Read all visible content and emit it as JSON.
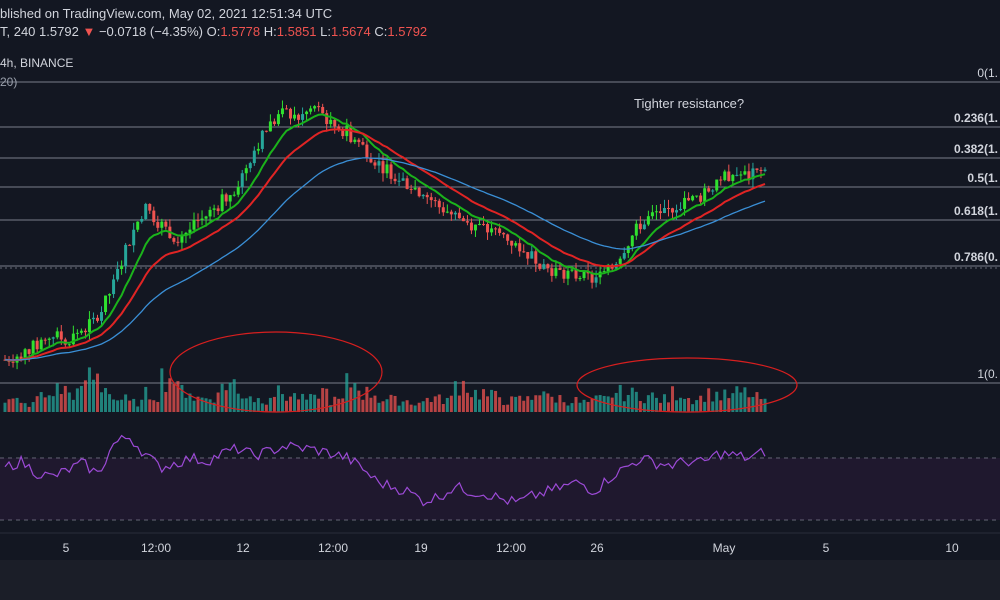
{
  "header": {
    "published": "blished on TradingView.com, May 02, 2021 12:51:34 UTC",
    "symbol_interval": "T, 240",
    "last_price": "1.5792",
    "change_arrow": "▼",
    "change": "−0.0718 (−4.35%)",
    "o_label": "O:",
    "o_value": "1.5778",
    "h_label": "H:",
    "h_value": "1.5851",
    "l_label": "L:",
    "l_value": "1.5674",
    "c_label": "C:",
    "c_value": "1.5792",
    "exchange": "4h, BINANCE",
    "indicator": "20)"
  },
  "colors": {
    "background": "#131722",
    "up_candle": "#26a69a",
    "up_candle_bright": "#2fe02f",
    "down_candle": "#ef5350",
    "ema_green": "#1bb31b",
    "ema_red": "#e02424",
    "ema_blue": "#3a8fd6",
    "rsi": "#9c4ad6",
    "annotation_ellipse": "#d71f1f"
  },
  "annotation": "Tighter resistance?",
  "chart_data": {
    "type": "candlestick",
    "fib_levels": [
      {
        "ratio": "0",
        "price": "(1."
      },
      {
        "ratio": "0.236",
        "price": "(1."
      },
      {
        "ratio": "0.382",
        "price": "(1."
      },
      {
        "ratio": "0.5",
        "price": "(1."
      },
      {
        "ratio": "0.618",
        "price": "(1."
      },
      {
        "ratio": "0.786",
        "price": "(0."
      },
      {
        "ratio": "1",
        "price": "(0."
      }
    ],
    "x_ticks": [
      "5",
      "12:00",
      "12",
      "12:00",
      "19",
      "12:00",
      "26",
      "May",
      "5",
      "10"
    ],
    "price_path": [
      0.03,
      0.05,
      0.08,
      0.12,
      0.1,
      0.14,
      0.18,
      0.3,
      0.46,
      0.58,
      0.52,
      0.47,
      0.5,
      0.55,
      0.6,
      0.66,
      0.78,
      0.87,
      0.92,
      0.9,
      0.94,
      0.88,
      0.85,
      0.8,
      0.74,
      0.7,
      0.66,
      0.63,
      0.58,
      0.55,
      0.52,
      0.5,
      0.48,
      0.44,
      0.4,
      0.36,
      0.34,
      0.33,
      0.32,
      0.35,
      0.44,
      0.52,
      0.56,
      0.57,
      0.6,
      0.62,
      0.68,
      0.7,
      0.69,
      0.71
    ],
    "volume_path": [
      0.18,
      0.12,
      0.25,
      0.35,
      0.3,
      0.55,
      0.4,
      0.2,
      0.15,
      0.28,
      0.55,
      0.35,
      0.22,
      0.25,
      0.45,
      0.28,
      0.2,
      0.3,
      0.25,
      0.2,
      0.32,
      0.18,
      0.45,
      0.3,
      0.2,
      0.18,
      0.15,
      0.22,
      0.2,
      0.45,
      0.3,
      0.25,
      0.18,
      0.2,
      0.35,
      0.22,
      0.18,
      0.15,
      0.2,
      0.3,
      0.28,
      0.25,
      0.2,
      0.3,
      0.22,
      0.28,
      0.25,
      0.3,
      0.22,
      0.15
    ],
    "rsi_path": [
      0.55,
      0.62,
      0.5,
      0.45,
      0.52,
      0.6,
      0.48,
      0.8,
      0.88,
      0.7,
      0.55,
      0.6,
      0.65,
      0.62,
      0.7,
      0.75,
      0.68,
      0.72,
      0.78,
      0.76,
      0.74,
      0.7,
      0.66,
      0.55,
      0.4,
      0.35,
      0.3,
      0.2,
      0.25,
      0.35,
      0.3,
      0.28,
      0.22,
      0.18,
      0.25,
      0.3,
      0.35,
      0.4,
      0.3,
      0.45,
      0.55,
      0.65,
      0.6,
      0.58,
      0.62,
      0.6,
      0.7,
      0.68,
      0.65,
      0.72
    ]
  }
}
